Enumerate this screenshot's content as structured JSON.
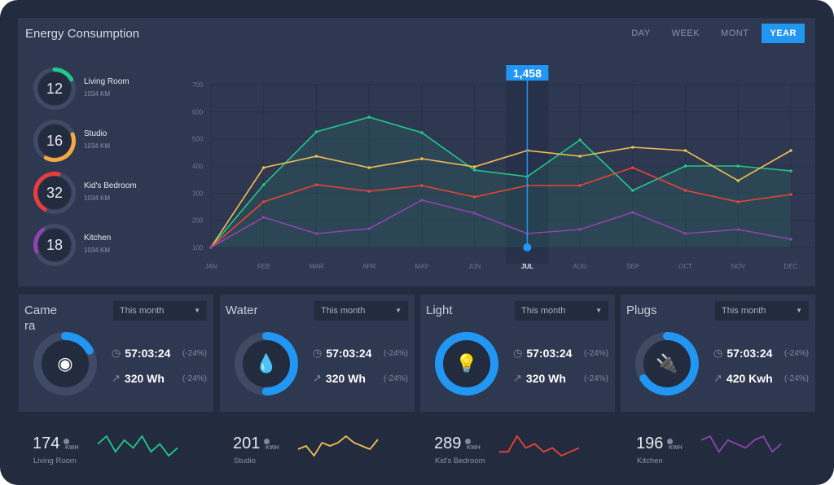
{
  "header": {
    "title": "Energy Consumption",
    "tabs": [
      {
        "label": "DAY"
      },
      {
        "label": "WEEK"
      },
      {
        "label": "MONT"
      },
      {
        "label": "YEAR",
        "active": true
      }
    ]
  },
  "rooms": [
    {
      "value": "12",
      "name": "Living Room",
      "sub": "1034 KM",
      "color": "#1fc98a",
      "fraction": 0.17
    },
    {
      "value": "16",
      "name": "Studio",
      "sub": "1034 KM",
      "color": "#f6a740",
      "fraction": 0.38
    },
    {
      "value": "32",
      "name": "Kid's Bedroom",
      "sub": "1034 KM",
      "color": "#ec3b3b",
      "fraction": 0.45
    },
    {
      "value": "18",
      "name": "Kitchen",
      "sub": "1034 KM",
      "color": "#8e44ad",
      "fraction": 0.2
    }
  ],
  "chart_data": {
    "type": "line",
    "categories": [
      "JAN",
      "FEB",
      "MAR",
      "APR",
      "MAY",
      "JUN",
      "JUL",
      "AUG",
      "SEP",
      "OCT",
      "NOV",
      "DEC"
    ],
    "ylim": [
      100,
      700
    ],
    "yticks": [
      "100",
      "200",
      "300",
      "400",
      "500",
      "600",
      "700"
    ],
    "grid": true,
    "highlight": {
      "category": "JUL",
      "label": "1,458",
      "color": "#2196f3"
    },
    "series": [
      {
        "color": "#1fc98a",
        "values": [
          100,
          331,
          526,
          580,
          523,
          385,
          361,
          496,
          310,
          400,
          400,
          382
        ],
        "filled": true
      },
      {
        "color": "#f3bd52",
        "values": [
          100,
          394,
          436,
          394,
          427,
          397,
          457,
          436,
          469,
          457,
          346,
          457
        ]
      },
      {
        "color": "#ea4335",
        "values": [
          100,
          268,
          331,
          307,
          328,
          286,
          328,
          328,
          394,
          310,
          268,
          295
        ]
      },
      {
        "color": "#8e44ad",
        "values": [
          100,
          211,
          151,
          169,
          274,
          226,
          151,
          166,
          229,
          151,
          166,
          130
        ]
      }
    ]
  },
  "cards": [
    {
      "title": "Camera",
      "select": "This month",
      "icon": "webcam-icon",
      "glyph": "◉",
      "fraction": 0.17,
      "time": "57:03:24",
      "time_pct": "(-24%)",
      "energy": "320 Wh",
      "energy_pct": "(-24%)"
    },
    {
      "title": "Water",
      "select": "This month",
      "icon": "water-drop-icon",
      "glyph": "💧",
      "fraction": 0.5,
      "time": "57:03:24",
      "time_pct": "(-24%)",
      "energy": "320 Wh",
      "energy_pct": "(-24%)"
    },
    {
      "title": "Light",
      "select": "This month",
      "icon": "light-bulb-icon",
      "glyph": "💡",
      "fraction": 1.0,
      "time": "57:03:24",
      "time_pct": "(-24%)",
      "energy": "320 Wh",
      "energy_pct": "(-24%)"
    },
    {
      "title": "Plugs",
      "select": "This month",
      "icon": "plug-icon",
      "glyph": "🔌",
      "fraction": 0.66,
      "time": "57:03:24",
      "time_pct": "(-24%)",
      "energy": "420 Kwh",
      "energy_pct": "(-24%)"
    }
  ],
  "gauge_color": "#2196f3",
  "summary": [
    {
      "value": "174",
      "unit": "KWH",
      "label": "Living Room",
      "color": "#1fc98a",
      "spark": [
        3,
        5,
        1,
        4,
        2,
        5,
        1,
        3,
        0,
        2
      ]
    },
    {
      "value": "201",
      "unit": "KWH",
      "label": "Studio",
      "color": "#f3bd52",
      "spark": [
        2,
        3,
        0,
        4,
        3,
        4,
        6,
        4,
        3,
        2,
        5
      ]
    },
    {
      "value": "289",
      "unit": "KWH",
      "label": "Kid's Bedroom",
      "color": "#ea4335",
      "spark": [
        1,
        1,
        5,
        2,
        3,
        1,
        2,
        0,
        1,
        2
      ]
    },
    {
      "value": "196",
      "unit": "KWH",
      "label": "Kitchen",
      "color": "#8e44ad",
      "spark": [
        4,
        5,
        1,
        4,
        3,
        2,
        4,
        5,
        1,
        3
      ]
    }
  ]
}
